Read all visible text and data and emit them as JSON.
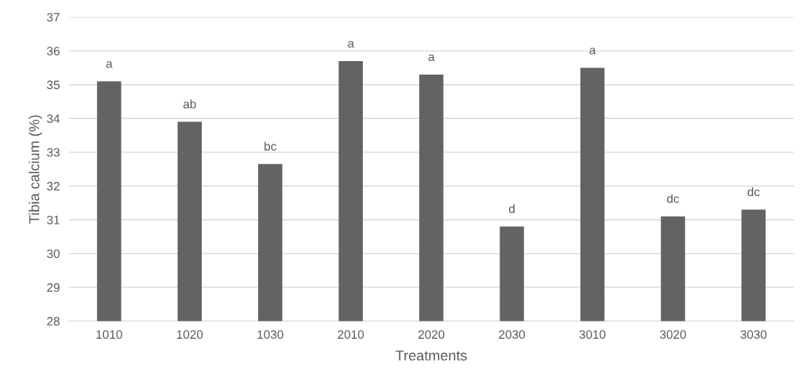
{
  "chart_data": {
    "type": "bar",
    "xlabel": "Treatments",
    "ylabel": "Tibia calcium (%)",
    "categories": [
      "1010",
      "1020",
      "1030",
      "2010",
      "2020",
      "2030",
      "3010",
      "3020",
      "3030"
    ],
    "values": [
      35.1,
      33.9,
      32.65,
      35.7,
      35.3,
      30.8,
      35.5,
      31.1,
      31.3
    ],
    "color": "#636363",
    "ylim": [
      28,
      37
    ],
    "yticks": [
      28,
      29,
      30,
      31,
      32,
      33,
      34,
      35,
      36,
      37
    ],
    "grid": "y",
    "annotations": [
      {
        "text": "a",
        "x": "1010",
        "y": 35.1
      },
      {
        "text": "ab",
        "x": "1020",
        "y": 33.9
      },
      {
        "text": "bc",
        "x": "1030",
        "y": 32.65
      },
      {
        "text": "a",
        "x": "2010",
        "y": 35.7
      },
      {
        "text": "a",
        "x": "2020",
        "y": 35.3
      },
      {
        "text": "d",
        "x": "2030",
        "y": 30.8
      },
      {
        "text": "a",
        "x": "3010",
        "y": 35.5
      },
      {
        "text": "dc",
        "x": "3020",
        "y": 31.1
      },
      {
        "text": "dc",
        "x": "3030",
        "y": 31.3
      }
    ]
  }
}
